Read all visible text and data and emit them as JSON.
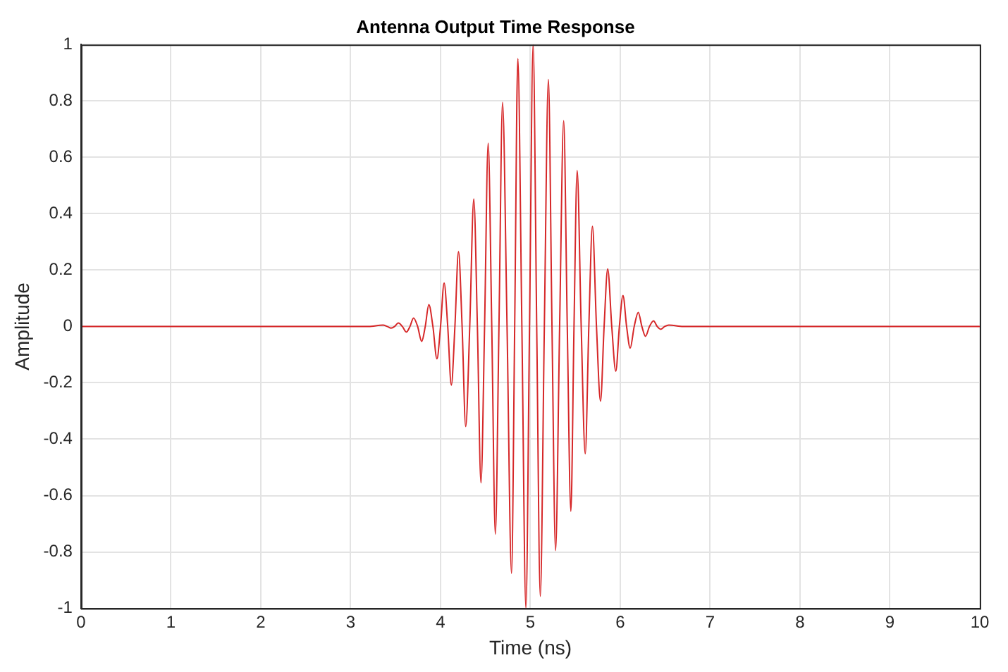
{
  "chart_data": {
    "type": "line",
    "title": "Antenna Output Time Response",
    "xlabel": "Time (ns)",
    "ylabel": "Amplitude",
    "xlim": [
      0,
      10
    ],
    "xticks": [
      0,
      1,
      2,
      3,
      4,
      5,
      6,
      7,
      8,
      9,
      10
    ],
    "ylim": [
      -1,
      1
    ],
    "yticks": [
      -1,
      -0.8,
      -0.6,
      -0.4,
      -0.2,
      0,
      0.2,
      0.4,
      0.6,
      0.8,
      1
    ],
    "grid": true,
    "legend": false,
    "marker": "none",
    "line_style": "solid",
    "series": [
      {
        "color": "#d62728",
        "x": [
          0,
          3.2,
          3.36,
          3.405,
          3.45,
          3.49,
          3.53,
          3.575,
          3.62,
          3.66,
          3.7,
          3.745,
          3.79,
          3.83,
          3.87,
          3.915,
          3.96,
          4.0,
          4.04,
          4.08,
          4.12,
          4.16,
          4.2,
          4.24,
          4.28,
          4.325,
          4.37,
          4.41,
          4.45,
          4.49,
          4.53,
          4.57,
          4.61,
          4.65,
          4.69,
          4.74,
          4.79,
          4.825,
          4.86,
          4.905,
          4.95,
          4.99,
          5.03,
          5.07,
          5.11,
          5.155,
          5.2,
          5.24,
          5.28,
          5.325,
          5.37,
          5.41,
          5.45,
          5.485,
          5.52,
          5.565,
          5.61,
          5.65,
          5.69,
          5.735,
          5.78,
          5.82,
          5.86,
          5.905,
          5.95,
          5.99,
          6.03,
          6.07,
          6.11,
          6.155,
          6.2,
          6.24,
          6.28,
          6.325,
          6.37,
          6.41,
          6.45,
          6.495,
          6.54,
          6.7,
          10
        ],
        "values": [
          0,
          0,
          0.005,
          0,
          -0.006,
          0,
          0.012,
          0,
          -0.02,
          0,
          0.03,
          0,
          -0.053,
          0,
          0.077,
          0,
          -0.115,
          0,
          0.154,
          0,
          -0.208,
          0,
          0.265,
          0,
          -0.355,
          0,
          0.452,
          0,
          -0.555,
          0,
          0.65,
          0,
          -0.737,
          0,
          0.795,
          0,
          -0.876,
          0,
          0.95,
          0,
          -1,
          0,
          1,
          0,
          -0.957,
          0,
          0.876,
          0,
          -0.795,
          0,
          0.73,
          0,
          -0.656,
          0,
          0.553,
          0,
          -0.452,
          0,
          0.355,
          0,
          -0.265,
          0,
          0.204,
          0,
          -0.159,
          0,
          0.11,
          0,
          -0.077,
          0,
          0.05,
          0,
          -0.035,
          0,
          0.02,
          0,
          -0.01,
          0,
          0.005,
          0,
          0
        ]
      }
    ]
  }
}
